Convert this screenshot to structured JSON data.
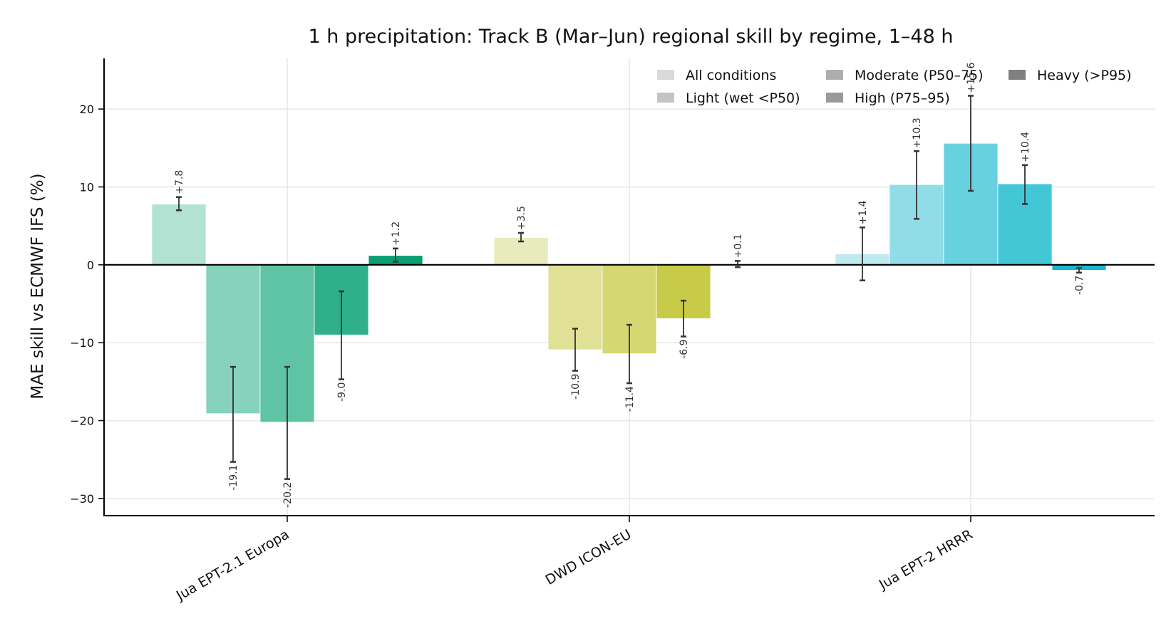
{
  "chart_data": {
    "type": "bar",
    "title": "1 h precipitation: Track B (Mar–Jun) regional skill by regime, 1–48 h",
    "xlabel": "",
    "ylabel": "MAE skill vs ECMWF IFS (%)",
    "ylim": [
      -32.2,
      26.5
    ],
    "yticks": [
      20,
      10,
      0,
      -10,
      -20,
      -30
    ],
    "ytick_labels": [
      "20",
      "10",
      "0",
      "−10",
      "−20",
      "−30"
    ],
    "grid": true,
    "legend_position": "top-right",
    "categories": [
      "Jua EPT-2.1 Europa",
      "DWD ICON-EU",
      "Jua EPT-2 HRRR"
    ],
    "regimes": [
      "All conditions",
      "Light (wet <P50)",
      "Moderate (P50–75)",
      "High (P75–95)",
      "Heavy (>P95)"
    ],
    "legend_swatch_colors": [
      "#d9d9d9",
      "#c4c4c4",
      "#adadad",
      "#9a9a9a",
      "#808080"
    ],
    "groups": [
      {
        "model": "Jua EPT-2.1 Europa",
        "colors": [
          "#b2e2d2",
          "#86d2bb",
          "#5ec4a4",
          "#2fb08a",
          "#0a9e72"
        ],
        "values": [
          7.8,
          -19.1,
          -20.2,
          -9.0,
          1.2
        ],
        "errors": [
          [
            7.0,
            8.7
          ],
          [
            -25.3,
            -13.1
          ],
          [
            -27.5,
            -13.1
          ],
          [
            -14.7,
            -3.4
          ],
          [
            0.4,
            2.1
          ]
        ],
        "labels": [
          "+7.8",
          "-19.1",
          "-20.2",
          "-9.0",
          "+1.2"
        ]
      },
      {
        "model": "DWD ICON-EU",
        "colors": [
          "#e8ebbd",
          "#e0e196",
          "#d5d772",
          "#c8cb48",
          null
        ],
        "values": [
          3.5,
          -10.9,
          -11.4,
          -6.9,
          0.1
        ],
        "errors": [
          [
            3.0,
            4.1
          ],
          [
            -13.6,
            -8.2
          ],
          [
            -15.2,
            -7.7
          ],
          [
            -9.2,
            -4.6
          ],
          [
            -0.3,
            0.5
          ]
        ],
        "labels": [
          "+3.5",
          "-10.9",
          "-11.4",
          "-6.9",
          "+0.1"
        ]
      },
      {
        "model": "Jua EPT-2 HRRR",
        "colors": [
          "#bfeaf0",
          "#90dde7",
          "#68d1df",
          "#43c7d7",
          "#17b8cf"
        ],
        "values": [
          1.4,
          10.3,
          15.6,
          10.4,
          -0.7
        ],
        "errors": [
          [
            -2.0,
            4.8
          ],
          [
            5.9,
            14.6
          ],
          [
            9.5,
            21.7
          ],
          [
            7.8,
            12.8
          ],
          [
            -1.0,
            -0.4
          ]
        ],
        "labels": [
          "+1.4",
          "+10.3",
          "+15.6",
          "+10.4",
          "-0.7"
        ]
      }
    ]
  }
}
